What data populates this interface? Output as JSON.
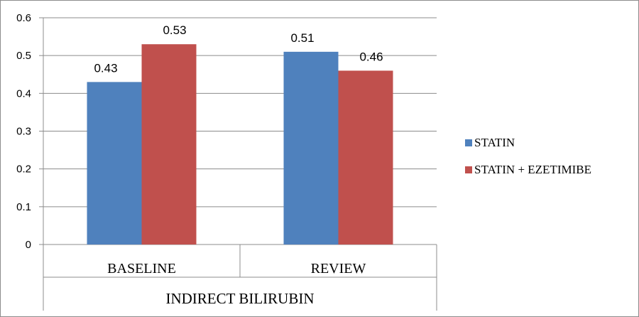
{
  "chart_data": {
    "type": "bar",
    "categories": [
      "BASELINE",
      "REVIEW"
    ],
    "group_label": "INDIRECT BILIRUBIN",
    "series": [
      {
        "name": "STATIN",
        "values": [
          0.43,
          0.51
        ],
        "color": "#4f81bd"
      },
      {
        "name": "STATIN + EZETIMIBE",
        "values": [
          0.53,
          0.46
        ],
        "color": "#c0504d"
      }
    ],
    "data_labels": [
      [
        "0.43",
        "0.51"
      ],
      [
        "0.53",
        "0.46"
      ]
    ],
    "ylim": [
      0,
      0.6
    ],
    "yticks": [
      0,
      0.1,
      0.2,
      0.3,
      0.4,
      0.5,
      0.6
    ],
    "ytick_labels": [
      "0",
      "0.1",
      "0.2",
      "0.3",
      "0.4",
      "0.5",
      "0.6"
    ],
    "grid": true,
    "legend_position": "right"
  }
}
